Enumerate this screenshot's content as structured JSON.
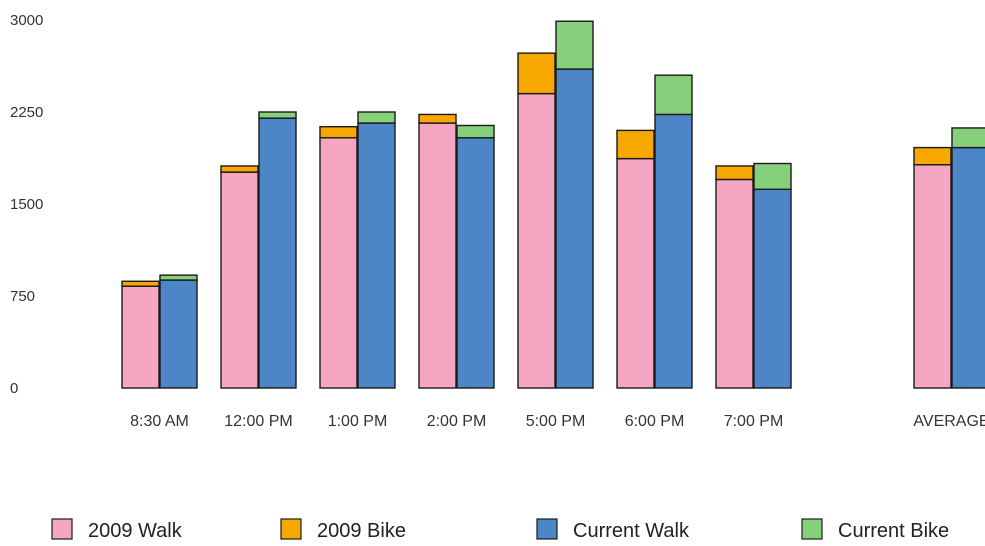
{
  "chart_data": {
    "type": "bar",
    "stacked": true,
    "grouped": true,
    "categories": [
      "8:30 AM",
      "12:00 PM",
      "1:00 PM",
      "2:00 PM",
      "5:00 PM",
      "6:00 PM",
      "7:00 PM",
      "AVERAGE"
    ],
    "yticks": [
      0,
      750,
      1500,
      2250,
      3000
    ],
    "ylim": [
      0,
      3000
    ],
    "grid": false,
    "legend_position": "bottom",
    "groups": [
      {
        "name": "2009",
        "series": [
          {
            "name": "2009 Walk",
            "color": "#f4a6c2",
            "values": [
              830,
              1760,
              2040,
              2160,
              2400,
              1870,
              1700,
              1820
            ]
          },
          {
            "name": "2009 Bike",
            "color": "#f7a800",
            "values": [
              40,
              50,
              90,
              70,
              330,
              230,
              110,
              140
            ]
          }
        ]
      },
      {
        "name": "Current",
        "series": [
          {
            "name": "Current Walk",
            "color": "#4d86c6",
            "values": [
              880,
              2200,
              2160,
              2040,
              2600,
              2230,
              1620,
              1960
            ]
          },
          {
            "name": "Current Bike",
            "color": "#86d07c",
            "values": [
              40,
              50,
              90,
              100,
              390,
              320,
              210,
              160
            ]
          }
        ]
      }
    ]
  },
  "legend": [
    {
      "label": "2009 Walk",
      "color": "#f4a6c2"
    },
    {
      "label": "2009 Bike",
      "color": "#f7a800"
    },
    {
      "label": "Current Walk",
      "color": "#4d86c6"
    },
    {
      "label": "Current Bike",
      "color": "#86d07c"
    }
  ]
}
